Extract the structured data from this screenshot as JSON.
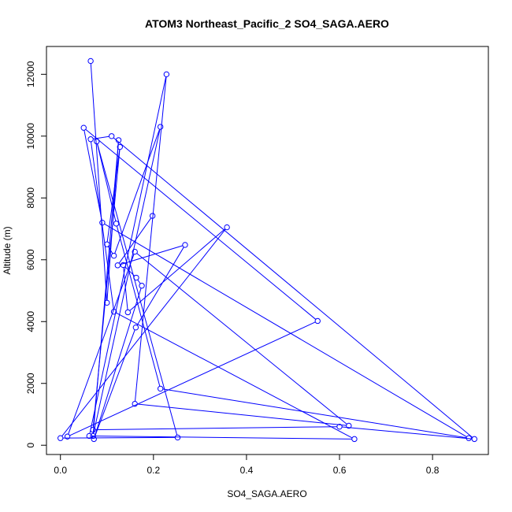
{
  "chart_data": {
    "type": "line",
    "title": "ATOM3 Northeast_Pacific_2 SO4_SAGA.AERO",
    "xlabel": "SO4_SAGA.AERO",
    "ylabel": "Altitude (m)",
    "xlim": [
      -0.03,
      0.92
    ],
    "ylim": [
      -300,
      12900
    ],
    "xticks": [
      "0.0",
      "0.2",
      "0.4",
      "0.6",
      "0.8"
    ],
    "xtick_values": [
      0,
      0.2,
      0.4,
      0.6,
      0.8
    ],
    "yticks": [
      "0",
      "2000",
      "4000",
      "6000",
      "8000",
      "10000",
      "12000"
    ],
    "ytick_values": [
      0,
      2000,
      4000,
      6000,
      8000,
      10000,
      12000
    ],
    "grid": false,
    "color": "#0000ff",
    "marker": "open-circle",
    "series": [
      {
        "x": [
          0.065,
          0.1,
          0.125,
          0.07,
          0.215,
          0.115,
          0.1,
          0.128,
          0.07,
          0.6,
          0.89,
          0.11,
          0.065,
          0.115,
          0.632,
          0.062,
          0.228,
          0.16,
          0.62,
          0.16,
          0.015,
          0.553,
          0.05,
          0.09,
          0.878,
          0.215,
          0.12,
          0.078,
          0.252,
          0.0,
          0.358,
          0.145,
          0.135,
          0.163,
          0.175,
          0.072,
          0.162,
          0.268,
          0.123,
          0.198
        ],
        "y": [
          12430,
          4610,
          9870,
          300,
          10300,
          6130,
          6500,
          9650,
          500,
          600,
          200,
          10000,
          9900,
          4320,
          200,
          300,
          12000,
          1340,
          630,
          6260,
          280,
          4020,
          10270,
          7200,
          230,
          1830,
          7170,
          9830,
          250,
          230,
          7050,
          4300,
          5830,
          5420,
          5160,
          200,
          3810,
          6480,
          5820,
          7420
        ]
      }
    ]
  }
}
